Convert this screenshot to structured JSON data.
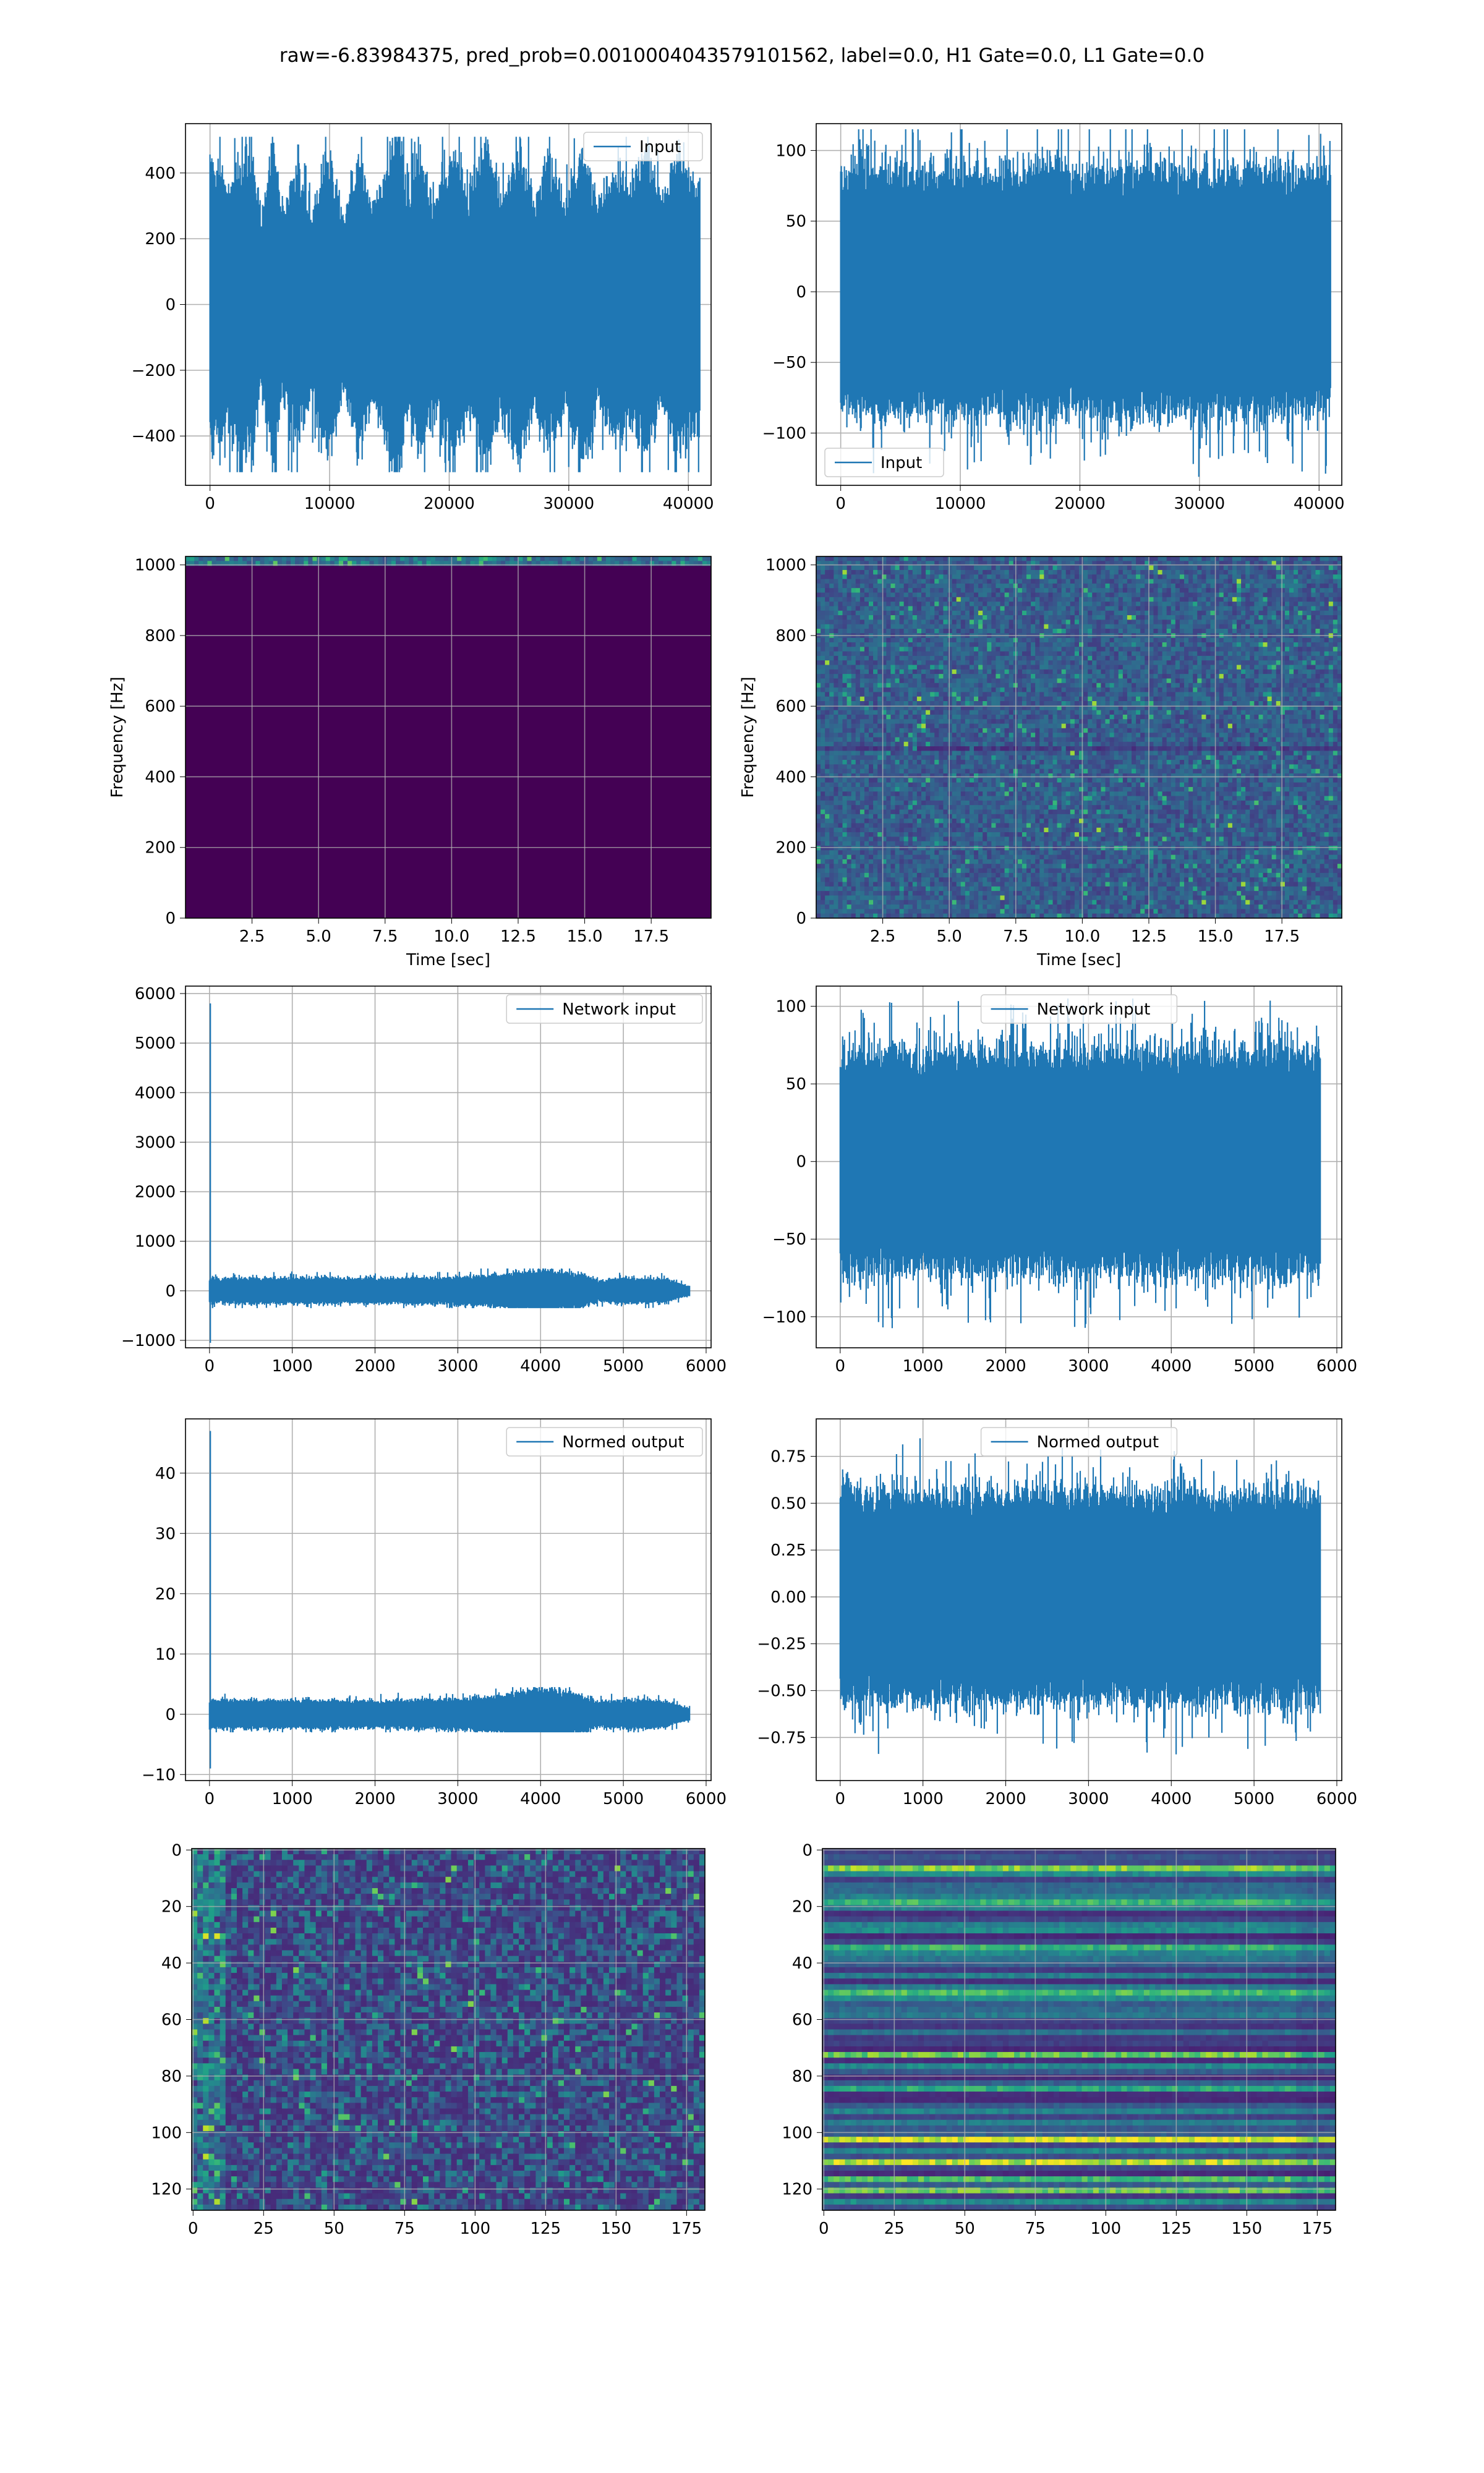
{
  "figure": {
    "suptitle": "raw=-6.83984375, pred_prob=0.0010004043579101562, label=0.0, H1 Gate=0.0, L1 Gate=0.0"
  },
  "colors": {
    "line": "#1f77b4",
    "grid": "#b0b0b0",
    "viridis_dark": "#440154",
    "viridis_mid": "#31688e",
    "viridis_teal": "#21918c",
    "viridis_green": "#5ec962",
    "viridis_yellow": "#fde725"
  },
  "chart_data": [
    {
      "id": "input-h1",
      "type": "line",
      "title": "",
      "xlabel": "",
      "ylabel": "",
      "xlim": [
        -2050,
        41900
      ],
      "ylim": [
        -550,
        550
      ],
      "xticks": [
        0,
        10000,
        20000,
        30000,
        40000
      ],
      "yticks": [
        -400,
        -200,
        0,
        200,
        400
      ],
      "legend": {
        "position": "top-right"
      },
      "series": [
        {
          "name": "Input",
          "x_range": [
            0,
            40960
          ],
          "envelope": [
            [
              0,
              420
            ],
            [
              1600,
              360
            ],
            [
              3500,
              470
            ],
            [
              4200,
              230
            ],
            [
              5300,
              470
            ],
            [
              6000,
              260
            ],
            [
              7200,
              410
            ],
            [
              8500,
              260
            ],
            [
              9800,
              440
            ],
            [
              11200,
              250
            ],
            [
              12300,
              430
            ],
            [
              13700,
              290
            ],
            [
              15000,
              420
            ],
            [
              15700,
              510
            ],
            [
              16500,
              310
            ],
            [
              17500,
              440
            ],
            [
              18800,
              280
            ],
            [
              20300,
              470
            ],
            [
              21500,
              300
            ],
            [
              23100,
              490
            ],
            [
              24300,
              310
            ],
            [
              25800,
              460
            ],
            [
              27200,
              310
            ],
            [
              28300,
              420
            ],
            [
              29700,
              300
            ],
            [
              31200,
              480
            ],
            [
              32500,
              270
            ],
            [
              33800,
              400
            ],
            [
              35200,
              340
            ],
            [
              36400,
              450
            ],
            [
              37800,
              290
            ],
            [
              39200,
              450
            ],
            [
              40500,
              360
            ]
          ],
          "min": -510,
          "max": 510
        }
      ],
      "grid": true
    },
    {
      "id": "input-l1",
      "type": "line",
      "title": "",
      "xlabel": "",
      "ylabel": "",
      "xlim": [
        -2050,
        41900
      ],
      "ylim": [
        -137,
        119
      ],
      "xticks": [
        0,
        10000,
        20000,
        30000,
        40000
      ],
      "yticks": [
        -100,
        -50,
        0,
        50,
        100
      ],
      "legend": {
        "position": "bottom-left"
      },
      "series": [
        {
          "name": "Input",
          "x_range": [
            0,
            40960
          ],
          "envelope": [
            [
              0,
              85
            ],
            [
              40960,
              85
            ]
          ],
          "min": -135,
          "max": 115
        }
      ],
      "grid": true
    },
    {
      "id": "spectrogram-h1",
      "type": "heatmap",
      "title": "",
      "xlabel": "Time [sec]",
      "ylabel": "Frequency [Hz]",
      "xlim": [
        0,
        19.75
      ],
      "ylim": [
        0,
        1024
      ],
      "xticks": [
        2.5,
        5.0,
        7.5,
        10.0,
        12.5,
        15.0,
        17.5
      ],
      "yticks": [
        0,
        200,
        400,
        600,
        800,
        1000
      ],
      "note_values": "energy only in the top band near 1024 Hz",
      "grid": true
    },
    {
      "id": "spectrogram-l1",
      "type": "heatmap",
      "title": "",
      "xlabel": "Time [sec]",
      "ylabel": "Frequency [Hz]",
      "xlim": [
        0,
        19.75
      ],
      "ylim": [
        0,
        1024
      ],
      "xticks": [
        2.5,
        5.0,
        7.5,
        10.0,
        12.5,
        15.0,
        17.5
      ],
      "yticks": [
        0,
        200,
        400,
        600,
        800,
        1000
      ],
      "grid": true
    },
    {
      "id": "network-input-h1",
      "type": "line",
      "title": "",
      "xlabel": "",
      "ylabel": "",
      "xlim": [
        -290,
        6060
      ],
      "ylim": [
        -1150,
        6150
      ],
      "xticks": [
        0,
        1000,
        2000,
        3000,
        4000,
        5000,
        6000
      ],
      "yticks": [
        -1000,
        0,
        1000,
        2000,
        3000,
        4000,
        5000,
        6000
      ],
      "legend": {
        "position": "top-right"
      },
      "series": [
        {
          "name": "Network input",
          "x_range": [
            0,
            5800
          ],
          "spike": {
            "x": 10,
            "max": 5800,
            "min": -1050
          },
          "envelope": [
            [
              0,
              250
            ],
            [
              1000,
              260
            ],
            [
              2000,
              250
            ],
            [
              3000,
              280
            ],
            [
              3500,
              320
            ],
            [
              4000,
              430
            ],
            [
              4500,
              330
            ],
            [
              4700,
              200
            ],
            [
              5000,
              260
            ],
            [
              5500,
              230
            ],
            [
              5800,
              90
            ]
          ],
          "min": -350,
          "max": 450
        }
      ],
      "grid": true
    },
    {
      "id": "network-input-l1",
      "type": "line",
      "title": "",
      "xlabel": "",
      "ylabel": "",
      "xlim": [
        -290,
        6060
      ],
      "ylim": [
        -120,
        113
      ],
      "xticks": [
        0,
        1000,
        2000,
        3000,
        4000,
        5000,
        6000
      ],
      "yticks": [
        -100,
        -50,
        0,
        50,
        100
      ],
      "legend": {
        "position": "top-center"
      },
      "series": [
        {
          "name": "Network input",
          "x_range": [
            0,
            5800
          ],
          "envelope": [
            [
              0,
              70
            ],
            [
              5800,
              70
            ]
          ],
          "min": -108,
          "max": 105
        }
      ],
      "grid": true
    },
    {
      "id": "normed-output-h1",
      "type": "line",
      "title": "",
      "xlabel": "",
      "ylabel": "",
      "xlim": [
        -290,
        6060
      ],
      "ylim": [
        -11,
        49
      ],
      "xticks": [
        0,
        1000,
        2000,
        3000,
        4000,
        5000,
        6000
      ],
      "yticks": [
        -10,
        0,
        10,
        20,
        30,
        40
      ],
      "legend": {
        "position": "top-right"
      },
      "series": [
        {
          "name": "Normed output",
          "x_range": [
            0,
            5800
          ],
          "spike": {
            "x": 10,
            "max": 47,
            "min": -9
          },
          "envelope": [
            [
              0,
              2.3
            ],
            [
              1000,
              2.4
            ],
            [
              2000,
              2.2
            ],
            [
              3000,
              2.6
            ],
            [
              3500,
              3.0
            ],
            [
              4000,
              4.3
            ],
            [
              4500,
              3.2
            ],
            [
              4700,
              2.0
            ],
            [
              5000,
              2.4
            ],
            [
              5500,
              2.2
            ],
            [
              5800,
              0.9
            ]
          ],
          "min": -3.0,
          "max": 4.5
        }
      ],
      "grid": true
    },
    {
      "id": "normed-output-l1",
      "type": "line",
      "title": "",
      "xlabel": "",
      "ylabel": "",
      "xlim": [
        -290,
        6060
      ],
      "ylim": [
        -0.98,
        0.95
      ],
      "xticks": [
        0,
        1000,
        2000,
        3000,
        4000,
        5000,
        6000
      ],
      "yticks": [
        -0.75,
        -0.5,
        -0.25,
        0.0,
        0.25,
        0.5,
        0.75
      ],
      "legend": {
        "position": "top-center"
      },
      "series": [
        {
          "name": "Normed output",
          "x_range": [
            0,
            5800
          ],
          "envelope": [
            [
              0,
              0.55
            ],
            [
              5800,
              0.55
            ]
          ],
          "min": -0.88,
          "max": 0.88
        }
      ],
      "grid": true
    },
    {
      "id": "features-h1",
      "type": "heatmap",
      "title": "",
      "xlabel": "",
      "ylabel": "",
      "xlim": [
        -0.5,
        181.5
      ],
      "ylim": [
        127.5,
        -0.5
      ],
      "xticks": [
        0,
        25,
        50,
        75,
        100,
        125,
        150,
        175
      ],
      "yticks": [
        0,
        20,
        40,
        60,
        80,
        100,
        120
      ],
      "shape": [
        128,
        182
      ],
      "grid": true
    },
    {
      "id": "features-l1",
      "type": "heatmap",
      "title": "",
      "xlabel": "",
      "ylabel": "",
      "xlim": [
        -0.5,
        181.5
      ],
      "ylim": [
        127.5,
        -0.5
      ],
      "xticks": [
        0,
        25,
        50,
        75,
        100,
        125,
        150,
        175
      ],
      "yticks": [
        0,
        20,
        40,
        60,
        80,
        100,
        120
      ],
      "shape": [
        128,
        182
      ],
      "bright_rows": [
        7,
        18,
        19,
        35,
        50,
        73,
        84,
        85,
        103,
        111,
        116,
        120
      ],
      "grid": true
    }
  ]
}
